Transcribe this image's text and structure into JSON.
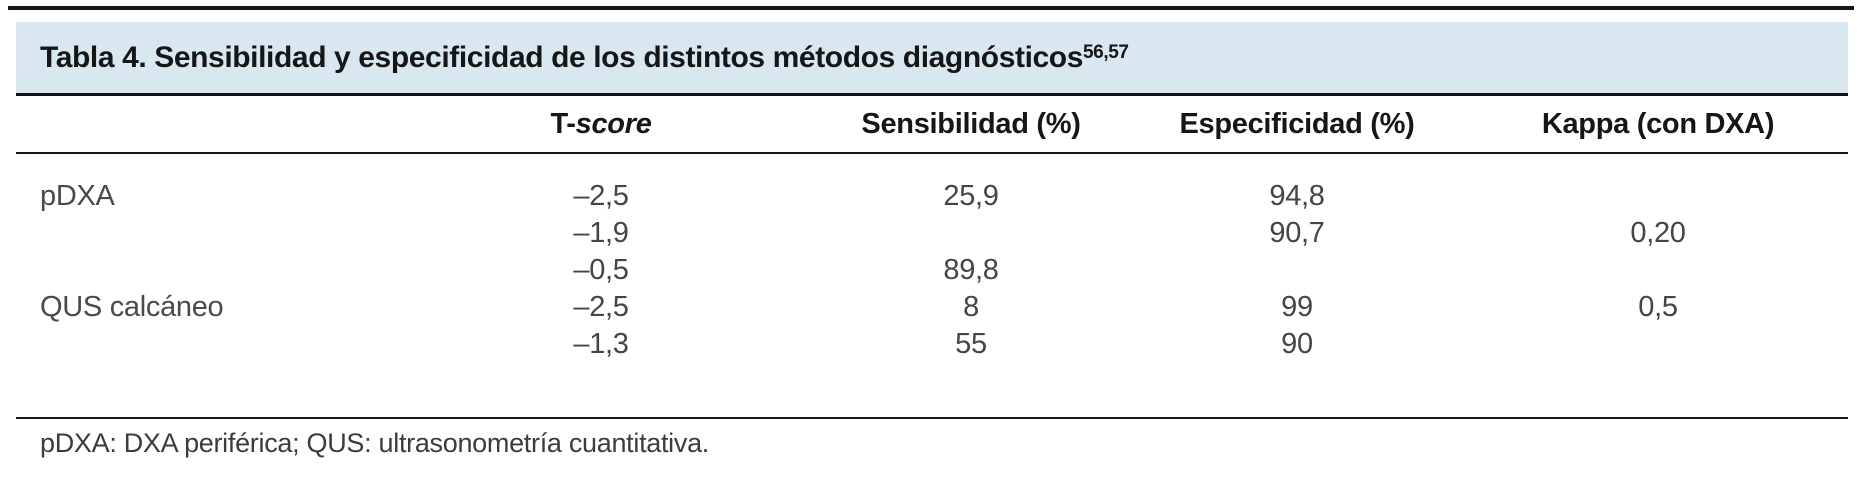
{
  "table": {
    "title": "Tabla 4. Sensibilidad y especificidad de los distintos métodos diagnósticos",
    "title_superscript": "56,57",
    "columns": {
      "method": "",
      "tscore_prefix": "T-",
      "tscore_word": "score",
      "sensitivity": "Sensibilidad (%)",
      "specificity": "Especificidad (%)",
      "kappa": "Kappa (con DXA)"
    },
    "rows": [
      {
        "method": "pDXA",
        "tscore": "–2,5",
        "sensitivity": "25,9",
        "specificity": "94,8",
        "kappa": ""
      },
      {
        "method": "",
        "tscore": "–1,9",
        "sensitivity": "",
        "specificity": "90,7",
        "kappa": "0,20"
      },
      {
        "method": "",
        "tscore": "–0,5",
        "sensitivity": "89,8",
        "specificity": "",
        "kappa": ""
      },
      {
        "method": "QUS calcáneo",
        "tscore": "–2,5",
        "sensitivity": "8",
        "specificity": "99",
        "kappa": "0,5"
      },
      {
        "method": "",
        "tscore": "–1,3",
        "sensitivity": "55",
        "specificity": "90",
        "kappa": ""
      }
    ],
    "footnote": "pDXA: DXA periférica; QUS: ultrasonometría cuantitativa.",
    "colors": {
      "title_bar_bg": "#d9e7f1",
      "rule": "#141414",
      "header_text": "#161616",
      "body_text": "#454545"
    }
  }
}
